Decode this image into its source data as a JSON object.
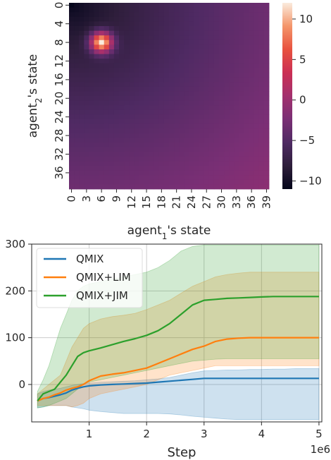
{
  "chart_data": [
    {
      "type": "heatmap",
      "xlabel_html": "agent<sub>1</sub>'s state",
      "xlabel": "agent1's state",
      "ylabel": "agent2's state",
      "x_ticks": [
        "0",
        "3",
        "6",
        "9",
        "12",
        "15",
        "18",
        "21",
        "24",
        "27",
        "30",
        "33",
        "36",
        "39"
      ],
      "y_ticks": [
        "0",
        "4",
        "8",
        "12",
        "16",
        "20",
        "24",
        "28",
        "32",
        "36"
      ],
      "n_cols": 40,
      "n_rows": 40,
      "colorbar_ticks": [
        10,
        5,
        0,
        -5,
        -10
      ],
      "vmin": -11,
      "vmax": 12,
      "field": {
        "base_value": -10.8,
        "gradient_target_value": -1.2,
        "hotspot": {
          "x": 6,
          "y": 8,
          "peak": 12,
          "radius": 2.2
        }
      }
    },
    {
      "type": "line",
      "xlabel": "Step",
      "x_offset_label": "1e6",
      "ylabel": "",
      "xlim": [
        0,
        5.05
      ],
      "ylim": [
        -80,
        300
      ],
      "x_ticks": [
        1,
        2,
        3,
        4,
        5
      ],
      "y_ticks": [
        0,
        100,
        200,
        300
      ],
      "grid": true,
      "legend_position": "top-left",
      "x": [
        0.1,
        0.2,
        0.3,
        0.4,
        0.5,
        0.6,
        0.7,
        0.8,
        0.9,
        1.0,
        1.2,
        1.4,
        1.6,
        1.8,
        2.0,
        2.2,
        2.4,
        2.6,
        2.8,
        3.0,
        3.2,
        3.4,
        3.6,
        3.8,
        4.0,
        4.2,
        4.4,
        4.6,
        4.8,
        5.0
      ],
      "series": [
        {
          "name": "QMIX",
          "color": "#1f77b4",
          "values": [
            -35,
            -30,
            -28,
            -25,
            -22,
            -18,
            -12,
            -8,
            -5,
            -3,
            -1,
            0,
            1,
            2,
            3,
            5,
            7,
            9,
            11,
            13,
            13,
            13,
            13,
            13,
            13,
            13,
            13,
            13,
            13,
            13
          ],
          "upper": [
            -20,
            -15,
            -12,
            -10,
            -8,
            -5,
            -2,
            0,
            2,
            3,
            5,
            6,
            7,
            8,
            10,
            12,
            15,
            20,
            25,
            29,
            30,
            31,
            31,
            32,
            32,
            33,
            33,
            34,
            34,
            34
          ],
          "lower": [
            -50,
            -48,
            -45,
            -45,
            -45,
            -45,
            -48,
            -50,
            -52,
            -55,
            -58,
            -60,
            -62,
            -62,
            -62,
            -62,
            -63,
            -65,
            -68,
            -70,
            -72,
            -74,
            -75,
            -75,
            -75,
            -75,
            -75,
            -75,
            -75,
            -75
          ]
        },
        {
          "name": "QMIX+LIM",
          "color": "#ff7f0e",
          "values": [
            -35,
            -30,
            -27,
            -22,
            -18,
            -12,
            -8,
            -5,
            0,
            8,
            18,
            22,
            25,
            30,
            35,
            45,
            55,
            65,
            75,
            82,
            92,
            97,
            99,
            100,
            100,
            100,
            100,
            100,
            100,
            100
          ],
          "upper": [
            -20,
            -10,
            0,
            10,
            20,
            50,
            80,
            100,
            120,
            130,
            140,
            145,
            148,
            152,
            160,
            170,
            180,
            195,
            210,
            220,
            230,
            235,
            238,
            240,
            240,
            240,
            240,
            240,
            240,
            240
          ],
          "lower": [
            -45,
            -45,
            -45,
            -45,
            -45,
            -45,
            -48,
            -45,
            -40,
            -30,
            -20,
            -15,
            -10,
            -5,
            0,
            10,
            20,
            25,
            30,
            35,
            40,
            40,
            40,
            40,
            40,
            40,
            40,
            40,
            40,
            40
          ]
        },
        {
          "name": "QMIX+JIM",
          "color": "#2ca02c",
          "values": [
            -35,
            -20,
            -15,
            -10,
            5,
            20,
            40,
            60,
            68,
            72,
            78,
            85,
            92,
            98,
            105,
            115,
            130,
            150,
            170,
            180,
            182,
            184,
            185,
            186,
            187,
            188,
            188,
            188,
            188,
            188
          ],
          "upper": [
            -15,
            10,
            40,
            80,
            120,
            150,
            180,
            200,
            210,
            215,
            220,
            225,
            230,
            235,
            240,
            250,
            265,
            285,
            295,
            298,
            298,
            298,
            298,
            298,
            298,
            298,
            298,
            298,
            298,
            298
          ],
          "lower": [
            -50,
            -48,
            -45,
            -40,
            -35,
            -30,
            -20,
            -10,
            0,
            5,
            10,
            15,
            20,
            25,
            30,
            35,
            40,
            45,
            50,
            52,
            54,
            55,
            55,
            55,
            55,
            55,
            55,
            55,
            55,
            55
          ]
        }
      ]
    }
  ]
}
